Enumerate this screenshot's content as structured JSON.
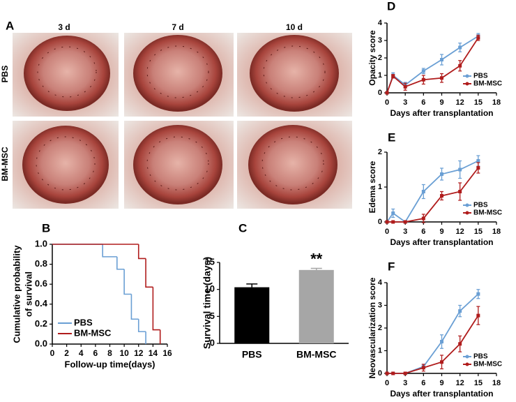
{
  "figure_a": {
    "label": "A",
    "columns": [
      "3 d",
      "7 d",
      "10 d"
    ],
    "rows": [
      "PBS",
      "BM-MSC"
    ]
  },
  "chart_data": [
    {
      "type": "step",
      "panel": "B",
      "xlabel": "Follow-up time(days)",
      "ylabel": [
        "Cumulative probability",
        "of survival"
      ],
      "xlim": [
        0,
        16
      ],
      "xticks": [
        0,
        2,
        4,
        6,
        8,
        10,
        12,
        14,
        16
      ],
      "ylim": [
        0,
        1
      ],
      "yticks": [
        {
          "value": 0,
          "label": "0.0"
        },
        0.2,
        0.4,
        0.6,
        0.8,
        {
          "value": 1,
          "label": "1.0"
        }
      ],
      "legend": "lower left",
      "series": [
        {
          "name": "PBS",
          "color": "#6a9fd4",
          "x": [
            0,
            7,
            9,
            10,
            11,
            12,
            13
          ],
          "values": [
            1,
            0.875,
            0.75,
            0.5,
            0.25,
            0.125,
            0
          ]
        },
        {
          "name": "BM-MSC",
          "color": "#b01c1c",
          "x": [
            0,
            12,
            13,
            14,
            15
          ],
          "values": [
            1,
            0.857,
            0.571,
            0.143,
            0
          ]
        }
      ]
    },
    {
      "type": "bar",
      "panel": "C",
      "ylabel": "Survival time (days)",
      "categories": [
        "PBS",
        "BM-MSC"
      ],
      "values": [
        10.4,
        13.6
      ],
      "errors": [
        0.6,
        0.3
      ],
      "colors": [
        "#000000",
        "#a6a6a6"
      ],
      "ylim": [
        0,
        15
      ],
      "yticks": [
        0,
        5,
        10,
        15
      ],
      "annotation": {
        "text": "**",
        "category": "BM-MSC"
      }
    },
    {
      "type": "line",
      "panel": "D",
      "xlabel": "Days after transplantation",
      "ylabel": "Opacity score",
      "x": [
        0,
        1,
        3,
        6,
        9,
        12,
        15
      ],
      "xlim": [
        0,
        18
      ],
      "xticks": [
        0,
        3,
        6,
        9,
        12,
        15,
        18
      ],
      "ylim": [
        0,
        4
      ],
      "yticks": [
        0,
        1,
        2,
        3,
        4
      ],
      "legend": "lower right",
      "series": [
        {
          "name": "PBS",
          "color": "#6a9fd4",
          "values": [
            0,
            1.0,
            0.45,
            1.25,
            1.9,
            2.6,
            3.25
          ],
          "errors": [
            0,
            0.15,
            0.15,
            0.15,
            0.3,
            0.25,
            0.15
          ]
        },
        {
          "name": "BM-MSC",
          "color": "#b01c1c",
          "values": [
            0,
            0.95,
            0.35,
            0.75,
            0.85,
            1.55,
            3.15
          ],
          "errors": [
            0,
            0.1,
            0.2,
            0.25,
            0.25,
            0.3,
            0.15
          ]
        }
      ]
    },
    {
      "type": "line",
      "panel": "E",
      "xlabel": "Days after transplantation",
      "ylabel": "Edema score",
      "x": [
        0,
        1,
        3,
        6,
        9,
        12,
        15
      ],
      "xlim": [
        0,
        18
      ],
      "xticks": [
        0,
        3,
        6,
        9,
        12,
        15,
        18
      ],
      "ylim": [
        0,
        2
      ],
      "yticks": [
        0,
        1,
        2
      ],
      "legend": "lower right",
      "series": [
        {
          "name": "PBS",
          "color": "#6a9fd4",
          "values": [
            0,
            0.25,
            0,
            0.87,
            1.37,
            1.5,
            1.75
          ],
          "errors": [
            0,
            0.12,
            0,
            0.2,
            0.17,
            0.25,
            0.15
          ]
        },
        {
          "name": "BM-MSC",
          "color": "#b01c1c",
          "values": [
            0,
            0,
            0,
            0.1,
            0.75,
            0.87,
            1.55
          ],
          "errors": [
            0,
            0,
            0,
            0.12,
            0.12,
            0.25,
            0.15
          ]
        }
      ]
    },
    {
      "type": "line",
      "panel": "F",
      "xlabel": "Days after transplantation",
      "ylabel": "Neovascularization score",
      "x": [
        0,
        1,
        3,
        6,
        9,
        12,
        15
      ],
      "xlim": [
        0,
        18
      ],
      "xticks": [
        0,
        3,
        6,
        9,
        12,
        15,
        18
      ],
      "ylim": [
        0,
        4
      ],
      "yticks": [
        0,
        1,
        2,
        3,
        4
      ],
      "legend": "lower right",
      "series": [
        {
          "name": "PBS",
          "color": "#6a9fd4",
          "values": [
            0,
            0,
            0,
            0.3,
            1.4,
            2.75,
            3.5
          ],
          "errors": [
            0,
            0,
            0,
            0.1,
            0.3,
            0.25,
            0.2
          ]
        },
        {
          "name": "BM-MSC",
          "color": "#b01c1c",
          "values": [
            0,
            0,
            0,
            0.25,
            0.5,
            1.3,
            2.55
          ],
          "errors": [
            0,
            0,
            0,
            0.15,
            0.3,
            0.35,
            0.4
          ]
        }
      ]
    }
  ]
}
